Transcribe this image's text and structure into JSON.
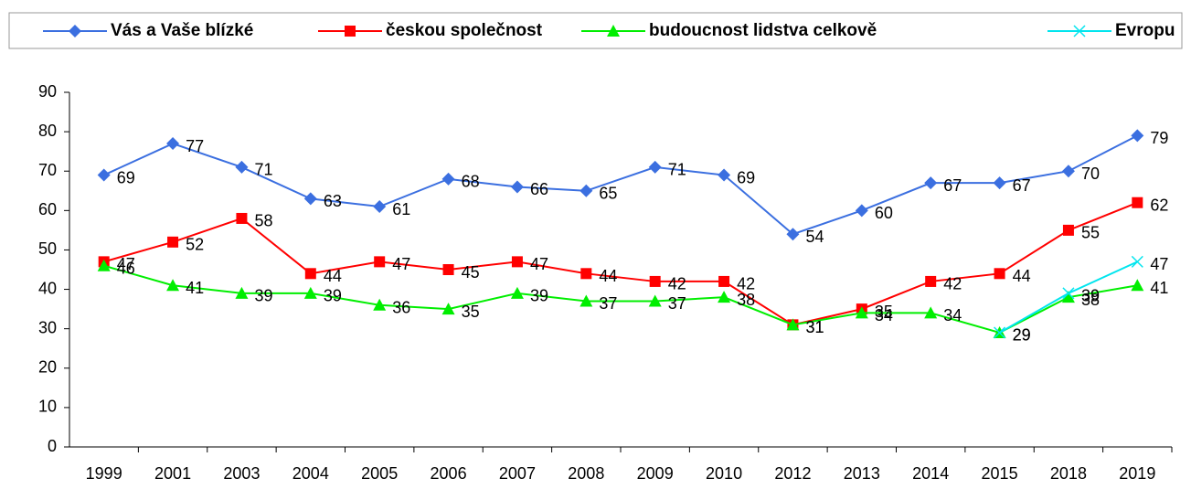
{
  "chart_data": {
    "type": "line",
    "categories": [
      "1999",
      "2001",
      "2003",
      "2004",
      "2005",
      "2006",
      "2007",
      "2008",
      "2009",
      "2010",
      "2012",
      "2013",
      "2014",
      "2015",
      "2018",
      "2019"
    ],
    "series": [
      {
        "name": "Vás a Vaše blízké",
        "color": "#3b6fe0",
        "marker": "diamond",
        "values": [
          69,
          77,
          71,
          63,
          61,
          68,
          66,
          65,
          71,
          69,
          54,
          60,
          67,
          67,
          70,
          79
        ]
      },
      {
        "name": "českou společnost",
        "color": "#ff0000",
        "marker": "square",
        "values": [
          47,
          52,
          58,
          44,
          47,
          45,
          47,
          44,
          42,
          42,
          31,
          35,
          42,
          44,
          55,
          62
        ]
      },
      {
        "name": "budoucnost lidstva celkově",
        "color": "#00ee00",
        "marker": "triangle",
        "values": [
          46,
          41,
          39,
          39,
          36,
          35,
          39,
          37,
          37,
          38,
          31,
          34,
          34,
          29,
          38,
          41
        ]
      },
      {
        "name": "Evropu",
        "color": "#00e5ee",
        "marker": "x",
        "values": [
          null,
          null,
          null,
          null,
          null,
          null,
          null,
          null,
          null,
          null,
          null,
          null,
          null,
          29,
          39,
          47
        ]
      }
    ],
    "ylim": [
      0,
      90
    ],
    "yticks": [
      0,
      10,
      20,
      30,
      40,
      50,
      60,
      70,
      80,
      90
    ],
    "grid": false,
    "legend": "top"
  }
}
